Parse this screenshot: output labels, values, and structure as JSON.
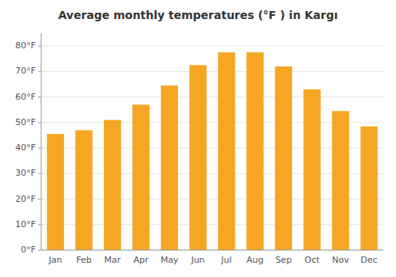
{
  "chart_data": {
    "type": "bar",
    "title": "Average monthly temperatures (°F ) in Kargı",
    "categories": [
      "Jan",
      "Feb",
      "Mar",
      "Apr",
      "May",
      "Jun",
      "Jul",
      "Aug",
      "Sep",
      "Oct",
      "Nov",
      "Dec"
    ],
    "values": [
      45.5,
      47.0,
      51.0,
      57.0,
      64.5,
      72.5,
      77.5,
      77.5,
      72.0,
      63.0,
      54.5,
      48.5
    ],
    "color": "#F5A623",
    "ylim": [
      0,
      85
    ],
    "yticks": [
      {
        "value": 0,
        "label": "0°F"
      },
      {
        "value": 10,
        "label": "10°F"
      },
      {
        "value": 20,
        "label": "20°F"
      },
      {
        "value": 30,
        "label": "30°F"
      },
      {
        "value": 40,
        "label": "40°F"
      },
      {
        "value": 50,
        "label": "50°F"
      },
      {
        "value": 60,
        "label": "60°F"
      },
      {
        "value": 70,
        "label": "70°F"
      },
      {
        "value": 80,
        "label": "80°F"
      }
    ],
    "grid": true
  }
}
